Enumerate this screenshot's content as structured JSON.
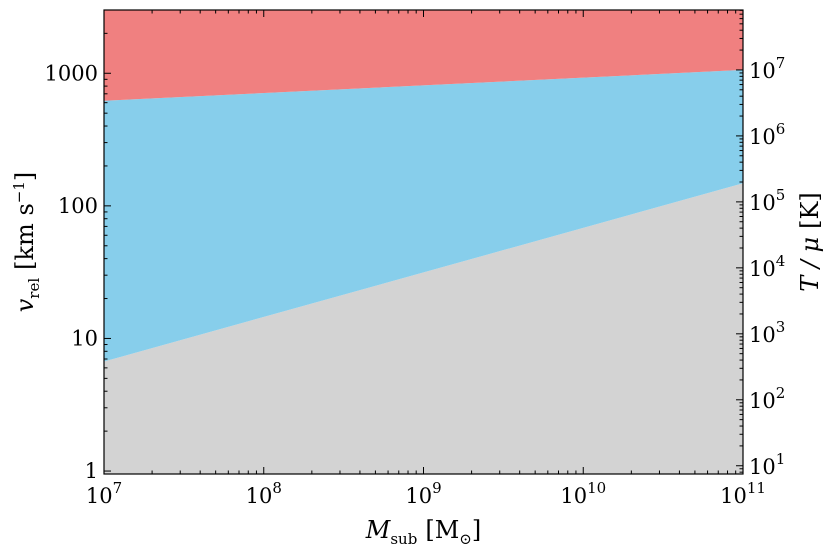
{
  "chart_data": {
    "type": "area",
    "xscale": "log",
    "yscale": "log",
    "xlim": [
      10000000,
      100000000000
    ],
    "ylim": [
      0.95,
      3000
    ],
    "y2lim": [
      7.5,
      81000000
    ],
    "x_ticks": [
      {
        "value": 10000000,
        "base": "10",
        "exp": "7"
      },
      {
        "value": 100000000,
        "base": "10",
        "exp": "8"
      },
      {
        "value": 1000000000,
        "base": "10",
        "exp": "9"
      },
      {
        "value": 10000000000,
        "base": "10",
        "exp": "10"
      },
      {
        "value": 100000000000,
        "base": "10",
        "exp": "11"
      }
    ],
    "y_ticks": [
      {
        "value": 1,
        "label": "1"
      },
      {
        "value": 10,
        "label": "10"
      },
      {
        "value": 100,
        "label": "100"
      },
      {
        "value": 1000,
        "label": "1000"
      }
    ],
    "y2_ticks": [
      {
        "value": 10,
        "base": "10",
        "exp": "1"
      },
      {
        "value": 100,
        "base": "10",
        "exp": "2"
      },
      {
        "value": 1000,
        "base": "10",
        "exp": "3"
      },
      {
        "value": 10000,
        "base": "10",
        "exp": "4"
      },
      {
        "value": 100000,
        "base": "10",
        "exp": "5"
      },
      {
        "value": 1000000,
        "base": "10",
        "exp": "6"
      },
      {
        "value": 10000000,
        "base": "10",
        "exp": "7"
      }
    ],
    "xlabel": {
      "main": "M",
      "sub": "sub",
      "unit": "[M",
      "unit_sub": "⊙",
      "unit_close": "]"
    },
    "ylabel": {
      "main": "v",
      "sub": "rel",
      "unit": "[km s",
      "unit_sup": "−1",
      "unit_close": "]"
    },
    "y2label": {
      "main": "T / μ",
      "unit": "[K]"
    },
    "boundaries": {
      "lower": {
        "name": "",
        "x": [
          10000000,
          100000000000
        ],
        "y": [
          6.7,
          148
        ]
      },
      "upper": {
        "name": "",
        "x": [
          10000000,
          100000000000
        ],
        "y": [
          620,
          1060
        ]
      }
    },
    "regions": [
      {
        "name": "",
        "color": "#d3d3d3",
        "from": "bottom",
        "to": "lower"
      },
      {
        "name": "",
        "color": "#87ceeb",
        "from": "lower",
        "to": "upper"
      },
      {
        "name": "",
        "color": "#f08080",
        "from": "upper",
        "to": "top"
      }
    ],
    "grid": false,
    "legend": "none"
  }
}
